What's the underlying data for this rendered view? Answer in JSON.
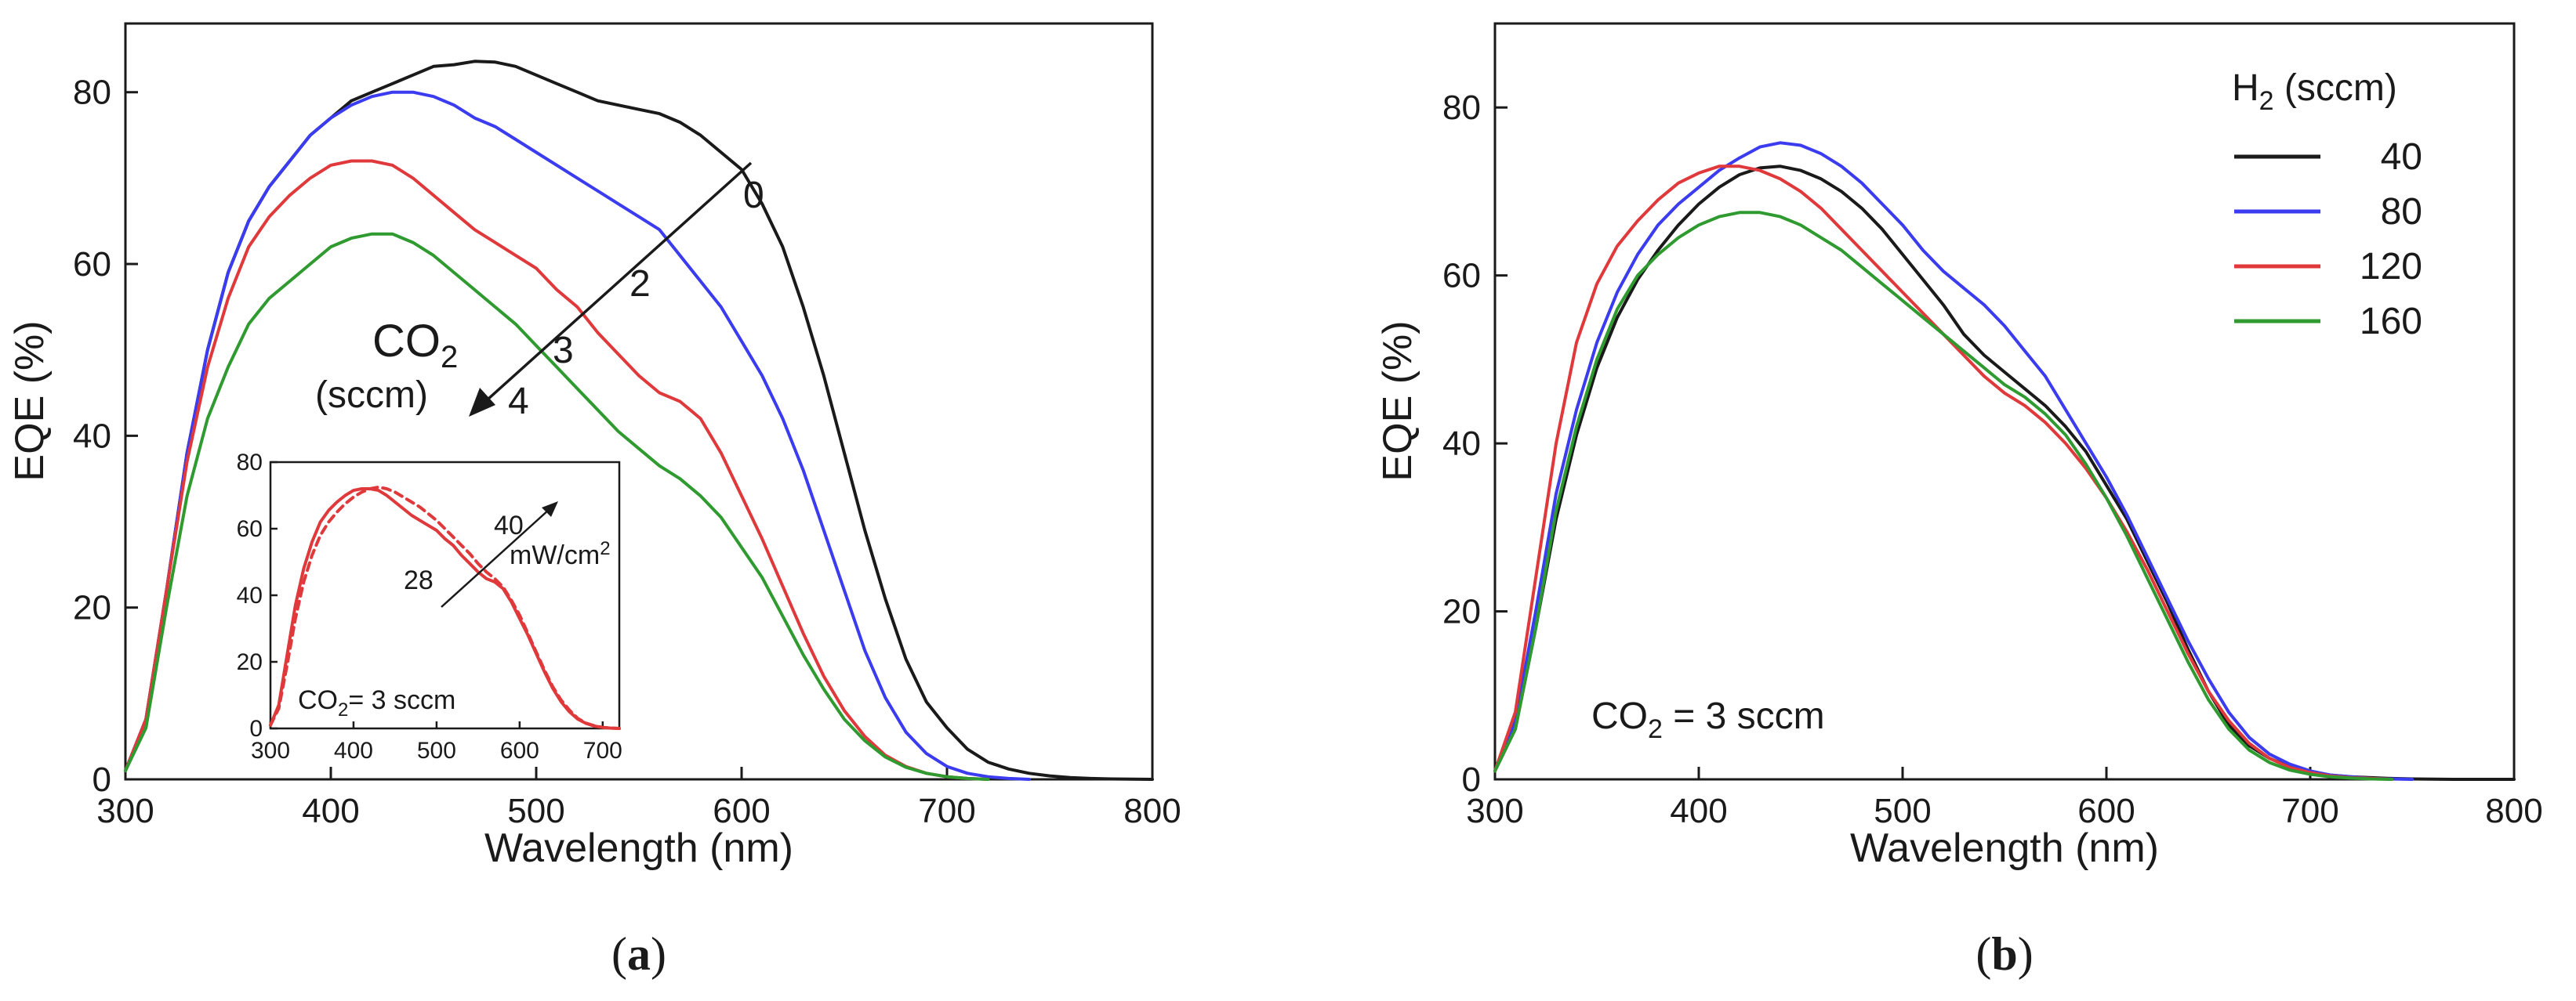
{
  "figure": {
    "captions": [
      "a",
      "b"
    ]
  },
  "colors": {
    "black": "#1a1a1a",
    "blue": "#3b3bf0",
    "red": "#e0393b",
    "green": "#2f9a2f"
  },
  "chart_data": [
    {
      "id": "a",
      "type": "line",
      "title": "",
      "xlabel": "Wavelength (nm)",
      "ylabel": "EQE (%)",
      "xlim": [
        300,
        800
      ],
      "ylim": [
        0,
        88
      ],
      "xticks": [
        300,
        400,
        500,
        600,
        700,
        800
      ],
      "yticks": [
        0,
        20,
        40,
        60,
        80
      ],
      "grid": false,
      "series": [
        {
          "name": "0",
          "color": "#1a1a1a",
          "x": [
            300,
            310,
            320,
            330,
            340,
            350,
            360,
            370,
            380,
            390,
            400,
            410,
            420,
            430,
            440,
            450,
            460,
            470,
            480,
            490,
            500,
            510,
            520,
            530,
            540,
            550,
            560,
            570,
            580,
            590,
            600,
            610,
            620,
            630,
            640,
            650,
            660,
            670,
            680,
            690,
            700,
            710,
            720,
            730,
            740,
            750,
            760,
            770,
            780,
            790,
            800
          ],
          "y": [
            1,
            7,
            22,
            38,
            50,
            59,
            65,
            69,
            72,
            75,
            77,
            79,
            80,
            81,
            82,
            83,
            83.2,
            83.6,
            83.5,
            83,
            82,
            81,
            80,
            79,
            78.5,
            78,
            77.5,
            76.5,
            75,
            73,
            71,
            67,
            62,
            55,
            47,
            38,
            29,
            21,
            14,
            9,
            6,
            3.5,
            2,
            1.2,
            0.7,
            0.4,
            0.2,
            0.1,
            0.05,
            0.02,
            0
          ]
        },
        {
          "name": "2",
          "color": "#3b3bf0",
          "x": [
            300,
            310,
            320,
            330,
            340,
            350,
            360,
            370,
            380,
            390,
            400,
            410,
            420,
            430,
            440,
            450,
            460,
            470,
            480,
            490,
            500,
            510,
            520,
            530,
            540,
            550,
            560,
            570,
            580,
            590,
            600,
            610,
            620,
            630,
            640,
            650,
            660,
            670,
            680,
            690,
            700,
            710,
            720,
            730,
            740
          ],
          "y": [
            1,
            7,
            22,
            38,
            50,
            59,
            65,
            69,
            72,
            75,
            77,
            78.5,
            79.5,
            80,
            80,
            79.5,
            78.5,
            77,
            76,
            74.5,
            73,
            71.5,
            70,
            68.5,
            67,
            65.5,
            64,
            61,
            58,
            55,
            51,
            47,
            42,
            36,
            29,
            22,
            15,
            9.5,
            5.5,
            3,
            1.5,
            0.7,
            0.3,
            0.1,
            0
          ]
        },
        {
          "name": "3",
          "color": "#e0393b",
          "x": [
            300,
            310,
            320,
            330,
            340,
            350,
            360,
            370,
            380,
            390,
            400,
            410,
            420,
            430,
            440,
            450,
            460,
            470,
            480,
            490,
            500,
            510,
            520,
            530,
            540,
            550,
            560,
            570,
            580,
            590,
            600,
            610,
            620,
            630,
            640,
            650,
            660,
            670,
            680,
            690,
            700,
            710,
            720
          ],
          "y": [
            1,
            7,
            22,
            37,
            48,
            56,
            62,
            65.5,
            68,
            70,
            71.5,
            72,
            72,
            71.5,
            70,
            68,
            66,
            64,
            62.5,
            61,
            59.5,
            57,
            55,
            52,
            49.5,
            47,
            45,
            44,
            42,
            38,
            33,
            28,
            22.5,
            17,
            12,
            8,
            5,
            2.8,
            1.5,
            0.7,
            0.3,
            0.1,
            0
          ]
        },
        {
          "name": "4",
          "color": "#2f9a2f",
          "x": [
            300,
            310,
            320,
            330,
            340,
            350,
            360,
            370,
            380,
            390,
            400,
            410,
            420,
            430,
            440,
            450,
            460,
            470,
            480,
            490,
            500,
            510,
            520,
            530,
            540,
            550,
            560,
            570,
            580,
            590,
            600,
            610,
            620,
            630,
            640,
            650,
            660,
            670,
            680,
            690,
            700,
            710,
            720
          ],
          "y": [
            1,
            6,
            20,
            33,
            42,
            48,
            53,
            56,
            58,
            60,
            62,
            63,
            63.5,
            63.5,
            62.5,
            61,
            59,
            57,
            55,
            53,
            50.5,
            48,
            45.5,
            43,
            40.5,
            38.5,
            36.5,
            35,
            33,
            30.5,
            27,
            23.5,
            19,
            14.5,
            10.5,
            7,
            4.5,
            2.6,
            1.4,
            0.7,
            0.3,
            0.1,
            0
          ]
        }
      ],
      "annotations": {
        "gas_label": "CO",
        "gas_subscript": "2",
        "unit_label": "(sccm)",
        "arrow_labels": [
          "0",
          "2",
          "3",
          "4"
        ]
      },
      "inset": {
        "type": "line",
        "xlim": [
          300,
          720
        ],
        "ylim": [
          0,
          80
        ],
        "xticks": [
          300,
          400,
          500,
          600,
          700
        ],
        "yticks": [
          0,
          20,
          40,
          60,
          80
        ],
        "condition": "CO2= 3 sccm",
        "condition_prefix": "CO",
        "condition_sub": "2",
        "condition_suffix": "= 3 sccm",
        "power_labels": [
          "28",
          "40"
        ],
        "power_unit": "mW/cm",
        "power_unit_sup": "2",
        "series": [
          {
            "name": "28",
            "style": "solid",
            "color": "#e0393b",
            "x": [
              300,
              310,
              320,
              330,
              340,
              350,
              360,
              370,
              380,
              390,
              400,
              410,
              420,
              430,
              440,
              450,
              460,
              470,
              480,
              490,
              500,
              510,
              520,
              530,
              540,
              550,
              560,
              570,
              580,
              590,
              600,
              610,
              620,
              630,
              640,
              650,
              660,
              670,
              680,
              690,
              700,
              710,
              720
            ],
            "y": [
              1,
              7,
              22,
              37,
              48,
              56,
              62,
              65.5,
              68,
              70,
              71.5,
              72,
              72,
              71.5,
              70,
              68,
              66,
              64,
              62.5,
              61,
              59.5,
              57,
              55,
              52,
              49.5,
              47,
              45,
              44,
              42,
              38,
              33,
              28,
              22.5,
              17,
              12,
              8,
              5,
              2.8,
              1.5,
              0.7,
              0.3,
              0.1,
              0
            ]
          },
          {
            "name": "40",
            "style": "dashed",
            "color": "#e0393b",
            "x": [
              300,
              310,
              320,
              330,
              340,
              350,
              360,
              370,
              380,
              390,
              400,
              410,
              420,
              430,
              440,
              450,
              460,
              470,
              480,
              490,
              500,
              510,
              520,
              530,
              540,
              550,
              560,
              570,
              580,
              590,
              600,
              610,
              620,
              630,
              640,
              650,
              660,
              670,
              680,
              690,
              700,
              710,
              720
            ],
            "y": [
              1,
              6,
              19,
              33,
              44,
              52,
              58,
              62,
              65,
              67.5,
              69.5,
              71,
              72,
              72.5,
              72,
              71,
              69.5,
              68,
              66.5,
              64.5,
              62.5,
              60,
              57.5,
              55,
              52.5,
              49.5,
              47,
              45,
              42.5,
              38.5,
              34,
              28.5,
              23,
              17.5,
              12.5,
              8.5,
              5.5,
              3,
              1.6,
              0.8,
              0.3,
              0.1,
              0
            ]
          }
        ]
      }
    },
    {
      "id": "b",
      "type": "line",
      "title": "",
      "xlabel": "Wavelength (nm)",
      "ylabel": "EQE (%)",
      "xlim": [
        300,
        800
      ],
      "ylim": [
        0,
        90
      ],
      "xticks": [
        300,
        400,
        500,
        600,
        700,
        800
      ],
      "yticks": [
        0,
        20,
        40,
        60,
        80
      ],
      "grid": false,
      "legend_title_prefix": "H",
      "legend_title_sub": "2",
      "legend_title_suffix": " (sccm)",
      "legend_position": "top-right",
      "condition_prefix": "CO",
      "condition_sub": "2",
      "condition_suffix": " = 3 sccm",
      "series": [
        {
          "name": "40",
          "color": "#1a1a1a",
          "x": [
            300,
            310,
            320,
            330,
            340,
            350,
            360,
            370,
            380,
            390,
            400,
            410,
            420,
            430,
            440,
            450,
            460,
            470,
            480,
            490,
            500,
            510,
            520,
            530,
            540,
            550,
            560,
            570,
            580,
            590,
            600,
            610,
            620,
            630,
            640,
            650,
            660,
            670,
            680,
            690,
            700,
            710,
            720,
            730,
            740,
            750,
            760,
            770,
            780,
            790,
            800
          ],
          "y": [
            1,
            6,
            18,
            31,
            41,
            49,
            55,
            59.5,
            63,
            66,
            68.5,
            70.5,
            72,
            72.8,
            73,
            72.5,
            71.5,
            70,
            68,
            65.5,
            62.5,
            59.5,
            56.5,
            53,
            50.5,
            48.5,
            46.5,
            44.5,
            42,
            39,
            35,
            31,
            26,
            21,
            15.5,
            10.5,
            6.5,
            4,
            2.5,
            1.5,
            0.8,
            0.5,
            0.3,
            0.2,
            0.1,
            0.05,
            0.02,
            0,
            0,
            0,
            0
          ]
        },
        {
          "name": "80",
          "color": "#3b3bf0",
          "x": [
            300,
            310,
            320,
            330,
            340,
            350,
            360,
            370,
            380,
            390,
            400,
            410,
            420,
            430,
            440,
            450,
            460,
            470,
            480,
            490,
            500,
            510,
            520,
            530,
            540,
            550,
            560,
            570,
            580,
            590,
            600,
            610,
            620,
            630,
            640,
            650,
            660,
            670,
            680,
            690,
            700,
            710,
            720,
            730,
            740,
            750
          ],
          "y": [
            1,
            7,
            20,
            34,
            44,
            52,
            58,
            62.5,
            66,
            68.5,
            70.5,
            72.5,
            74,
            75.3,
            75.8,
            75.5,
            74.5,
            73,
            71,
            68.5,
            66,
            63,
            60.5,
            58.5,
            56.5,
            54,
            51,
            48,
            44,
            40,
            36,
            31.5,
            26.5,
            21.5,
            16.5,
            12,
            8,
            5,
            3,
            1.8,
            1,
            0.5,
            0.3,
            0.1,
            0.05,
            0
          ]
        },
        {
          "name": "120",
          "color": "#e0393b",
          "x": [
            300,
            310,
            320,
            330,
            340,
            350,
            360,
            370,
            380,
            390,
            400,
            410,
            420,
            430,
            440,
            450,
            460,
            470,
            480,
            490,
            500,
            510,
            520,
            530,
            540,
            550,
            560,
            570,
            580,
            590,
            600,
            610,
            620,
            630,
            640,
            650,
            660,
            670,
            680,
            690,
            700,
            710,
            720,
            730,
            740
          ],
          "y": [
            1,
            8,
            24,
            40,
            52,
            59,
            63.5,
            66.5,
            69,
            71,
            72.2,
            73,
            73,
            72.5,
            71.5,
            70,
            68,
            65.5,
            63,
            60.5,
            58,
            55.5,
            53,
            50.5,
            48,
            46,
            44.5,
            42.5,
            40,
            37,
            33.5,
            29.5,
            25,
            20,
            15,
            10.5,
            7,
            4.3,
            2.5,
            1.4,
            0.8,
            0.4,
            0.2,
            0.1,
            0
          ]
        },
        {
          "name": "160",
          "color": "#2f9a2f",
          "x": [
            300,
            310,
            320,
            330,
            340,
            350,
            360,
            370,
            380,
            390,
            400,
            410,
            420,
            430,
            440,
            450,
            460,
            470,
            480,
            490,
            500,
            510,
            520,
            530,
            540,
            550,
            560,
            570,
            580,
            590,
            600,
            610,
            620,
            630,
            640,
            650,
            660,
            670,
            680,
            690,
            700,
            710,
            720,
            730,
            740
          ],
          "y": [
            1,
            6,
            18,
            32,
            42,
            50,
            56,
            60,
            62.5,
            64.5,
            66,
            67,
            67.5,
            67.5,
            67,
            66,
            64.5,
            63,
            61,
            59,
            57,
            55,
            53,
            51,
            49,
            47,
            45.5,
            43.5,
            41,
            37.5,
            33.5,
            29,
            24,
            19,
            14,
            9.5,
            6,
            3.5,
            2,
            1.1,
            0.6,
            0.3,
            0.15,
            0.05,
            0
          ]
        }
      ]
    }
  ]
}
